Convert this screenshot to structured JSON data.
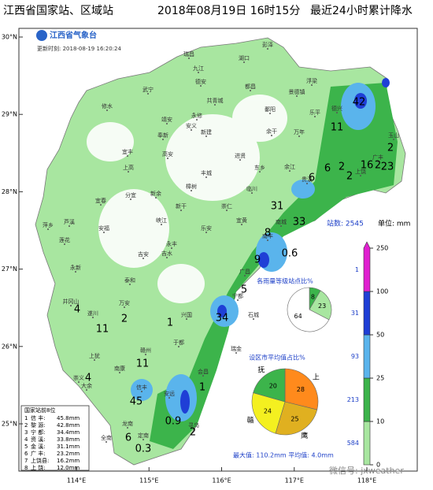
{
  "title": "江西省国家站、区域站",
  "datetime": "2018年08月19日 16时15分",
  "product": "最近24小时累计降水",
  "logo": "江西省气象台",
  "update_time": "更新时刻: 2018-08-19 16:20:24",
  "lat_ticks": [
    {
      "value": 30,
      "label": "30°N"
    },
    {
      "value": 29,
      "label": "29°N"
    },
    {
      "value": 28,
      "label": "28°N"
    },
    {
      "value": 27,
      "label": "27°N"
    },
    {
      "value": 26,
      "label": "26°N"
    },
    {
      "value": 25,
      "label": "25°N"
    }
  ],
  "lon_ticks": [
    {
      "value": 114,
      "label": "114°E"
    },
    {
      "value": 115,
      "label": "115°E"
    },
    {
      "value": 116,
      "label": "116°E"
    },
    {
      "value": 117,
      "label": "117°E"
    },
    {
      "value": 118,
      "label": "118°E"
    }
  ],
  "station_count": "站数: 2545",
  "unit": "单位: mm",
  "legend": {
    "levels": [
      0,
      10,
      25,
      50,
      100,
      250
    ],
    "colors": [
      "#a8e6a0",
      "#3cb44b",
      "#5ab4ec",
      "#1f3fd6",
      "#e020d0"
    ],
    "counts": [
      584,
      213,
      93,
      31,
      1
    ]
  },
  "level_pie": {
    "title": "各雨量等级站点比%",
    "values": [
      8,
      23,
      64
    ],
    "colors": [
      "#3cb44b",
      "#a8e6a0",
      "#ffffff"
    ]
  },
  "city_pie": {
    "title": "设区市平均值占比%",
    "segments": [
      {
        "name": "上",
        "value": 28,
        "color": "#ff8a1c"
      },
      {
        "name": "鹰",
        "value": 25,
        "color": "#e0b020"
      },
      {
        "name": "赣",
        "value": 24,
        "color": "#f4f020"
      },
      {
        "name": "抚",
        "value": 20,
        "color": "#3cb44b"
      }
    ]
  },
  "stats": "最大值: 110.2mm 平均值: 4.0mm",
  "top_stations": {
    "title": "国家站前8位",
    "rows": [
      [
        "1",
        "信 丰:",
        "45.8mm"
      ],
      [
        "2",
        "黎 源:",
        "42.8mm"
      ],
      [
        "3",
        "宁 都:",
        "34.4mm"
      ],
      [
        "4",
        "资 溪:",
        "33.8mm"
      ],
      [
        "5",
        "金 溪:",
        "31.1mm"
      ],
      [
        "6",
        "广 丰:",
        "23.2mm"
      ],
      [
        "7",
        "上饶县:",
        "16.2mm"
      ],
      [
        "8",
        "上 饶:",
        "12.0mm"
      ]
    ]
  },
  "rain_values": [
    42,
    11,
    2,
    6,
    2,
    2,
    16,
    2,
    23,
    6,
    31,
    33,
    8,
    9,
    0.6,
    5,
    34,
    1,
    4,
    2,
    11,
    4,
    11,
    45,
    0.9,
    1,
    2,
    6,
    0.3
  ],
  "cities": [
    "彭泽",
    "瑞昌",
    "九江",
    "湖口",
    "德安",
    "武宁",
    "修水",
    "共青城",
    "都昌",
    "浮梁",
    "景德镇",
    "鄱阳",
    "永修",
    "靖安",
    "安义",
    "奉新",
    "新建",
    "余干",
    "万年",
    "乐平",
    "宜丰",
    "上高",
    "丰城",
    "高安",
    "进贤",
    "余江",
    "贵溪",
    "东乡",
    "临川",
    "新余",
    "分宜",
    "宜春",
    "萍乡",
    "芦溪",
    "樟树",
    "新干",
    "峡江",
    "崇仁",
    "宜黄",
    "南城",
    "南丰",
    "乐安",
    "永丰",
    "吉水",
    "吉安",
    "安福",
    "永新",
    "莲花",
    "泰和",
    "万安",
    "遂川",
    "井冈山",
    "兴国",
    "宁都",
    "广昌",
    "石城",
    "瑞金",
    "于都",
    "赣州",
    "上犹",
    "崇义",
    "南康",
    "信丰",
    "大余",
    "会昌",
    "安远",
    "寻乌",
    "定南",
    "龙南",
    "全南",
    "上饶",
    "玉山",
    "广丰",
    "德兴"
  ],
  "watermark": "微信号: jxweather"
}
